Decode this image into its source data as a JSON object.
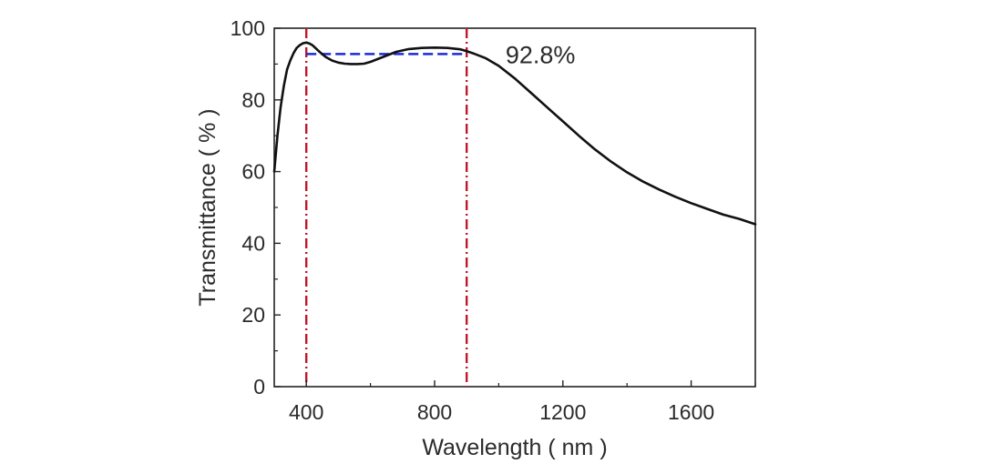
{
  "chart_data": {
    "type": "line",
    "title": "",
    "xlabel": "Wavelength ( nm )",
    "ylabel": "Transmittance ( % )",
    "xlim": [
      300,
      1800
    ],
    "ylim": [
      0,
      100
    ],
    "xticks": [
      400,
      800,
      1200,
      1600
    ],
    "yticks": [
      0,
      20,
      40,
      60,
      80,
      100
    ],
    "grid": false,
    "series": [
      {
        "name": "Transmittance",
        "color": "#111111",
        "x": [
          300,
          310,
          320,
          330,
          340,
          350,
          360,
          370,
          380,
          390,
          400,
          410,
          420,
          440,
          460,
          480,
          500,
          520,
          540,
          560,
          580,
          600,
          640,
          680,
          720,
          760,
          800,
          840,
          880,
          900,
          920,
          960,
          1000,
          1050,
          1100,
          1150,
          1200,
          1250,
          1300,
          1350,
          1400,
          1450,
          1500,
          1550,
          1600,
          1650,
          1700,
          1750,
          1800
        ],
        "y": [
          60,
          70,
          78,
          84,
          88.5,
          91,
          93,
          94.5,
          95.3,
          95.8,
          96,
          95.7,
          95.2,
          93.5,
          92,
          91,
          90.4,
          90.1,
          90,
          90,
          90.1,
          90.6,
          92,
          93.4,
          94.2,
          94.5,
          94.6,
          94.5,
          94.1,
          93.6,
          93,
          91.6,
          89.5,
          86,
          82,
          78,
          74,
          70,
          66.2,
          62.8,
          59.8,
          57.2,
          55,
          53,
          51.2,
          49.6,
          48,
          46.8,
          45.3
        ]
      }
    ],
    "reference_lines": [
      {
        "name": "lower-bound",
        "orientation": "vertical",
        "x": 400,
        "color": "#c0182a",
        "style": "dash-dot"
      },
      {
        "name": "upper-bound",
        "orientation": "vertical",
        "x": 900,
        "color": "#c0182a",
        "style": "dash-dot"
      },
      {
        "name": "average",
        "orientation": "horizontal",
        "y": 92.8,
        "x_from": 400,
        "x_to": 900,
        "color": "#1c2bd6",
        "style": "dashed"
      }
    ],
    "annotations": [
      {
        "text": "92.8%",
        "x": 1130,
        "y": 92.8
      }
    ]
  }
}
